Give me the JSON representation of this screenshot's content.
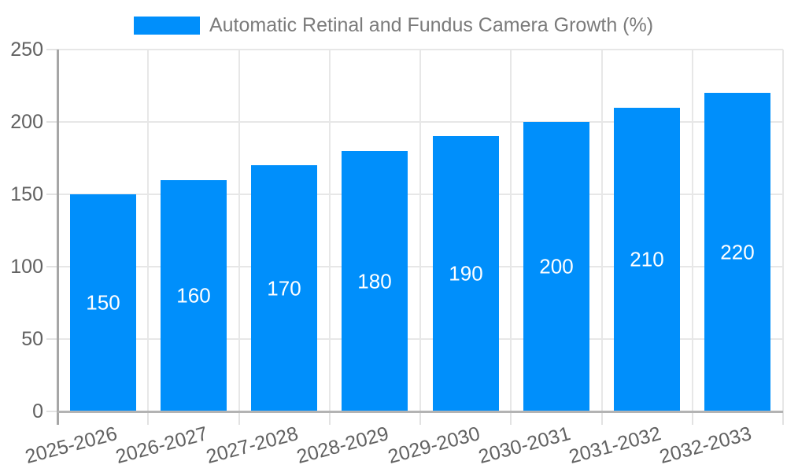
{
  "legend": {
    "label": "Automatic Retinal and Fundus Camera Growth (%)"
  },
  "chart_data": {
    "type": "bar",
    "title": "Automatic Retinal and Fundus Camera Growth (%)",
    "categories": [
      "2025-2026",
      "2026-2027",
      "2027-2028",
      "2028-2029",
      "2029-2030",
      "2030-2031",
      "2031-2032",
      "2032-2033"
    ],
    "values": [
      150,
      160,
      170,
      180,
      190,
      200,
      210,
      220
    ],
    "value_labels": [
      "150",
      "160",
      "170",
      "180",
      "190",
      "200",
      "210",
      "220"
    ],
    "xlabel": "",
    "ylabel": "",
    "ylim": [
      0,
      250
    ],
    "y_ticks": [
      0,
      50,
      100,
      150,
      200,
      250
    ],
    "y_tick_labels": [
      "0",
      "50",
      "100",
      "150",
      "200",
      "250"
    ],
    "grid": true,
    "legend_position": "top",
    "value_labels_inside_bars": true
  },
  "colors": {
    "bar": "#008FFB",
    "grid": "#e7e7e7",
    "y_axis": "#a6a6a6",
    "x_axis": "#b3b3b3",
    "tick": "#e2e2e2",
    "axis_label_text": "#616161",
    "legend_text": "#7b7b7b",
    "bar_value_text": "#ffffff",
    "background": "#ffffff"
  }
}
